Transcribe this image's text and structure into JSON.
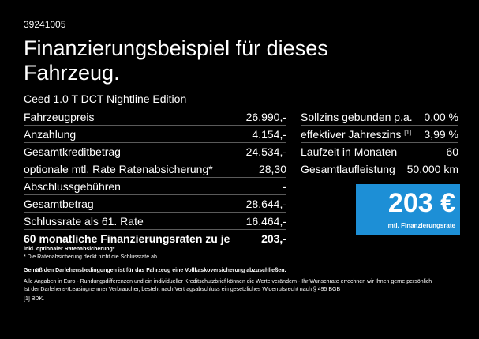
{
  "code": "39241005",
  "title_line1": "Finanzierungsbeispiel für dieses",
  "title_line2": "Fahrzeug.",
  "model": "Ceed 1.0 T DCT Nightline Edition",
  "left_rows": [
    {
      "label": "Fahrzeugpreis",
      "value": "26.990,-"
    },
    {
      "label": "Anzahlung",
      "value": "4.154,-"
    },
    {
      "label": "Gesamtkreditbetrag",
      "value": "24.534,-"
    },
    {
      "label": "optionale mtl. Rate Ratenabsicherung*",
      "value": "28,30"
    },
    {
      "label": "Abschlussgebühren",
      "value": "-"
    },
    {
      "label": "Gesamtbetrag",
      "value": "28.644,-"
    },
    {
      "label": "Schlussrate als 61. Rate",
      "value": "16.464,-"
    },
    {
      "label": "60 monatliche Finanzierungsraten zu je",
      "value": "203,-"
    }
  ],
  "right_rows": [
    {
      "label": "Sollzins gebunden p.a.",
      "sup": "",
      "value": "0,00 %"
    },
    {
      "label": "effektiver Jahreszins",
      "sup": "[1]",
      "value": "3,99 %"
    },
    {
      "label": "Laufzeit in Monaten",
      "sup": "",
      "value": "60"
    },
    {
      "label": "Gesamtlaufleistung",
      "sup": "",
      "value": "50.000 km"
    }
  ],
  "rate_box": {
    "amount": "203 €",
    "label": "mtl. Finanzierungsrate",
    "color": "#1d8fd6"
  },
  "notes": {
    "optional_title": "inkl. optionaler Ratenabsicherung*",
    "optional_text": "* Die Ratenabsicherung deckt nicht die Schlussrate ab.",
    "conditions_title": "Gemäß den Darlehensbedingungen ist für das Fahrzeug eine Vollkaskoversicherung abzuschließen.",
    "conditions_line1": "Alle Angaben in Euro - Rundungsdifferenzen und ein individueller Kreditschutzbrief können die Werte verändern - Ihr Wunschrate errechnen wir Ihnen gerne persönlich",
    "conditions_line2": "Ist der Darlehens-/Leasingnehmer Verbraucher, besteht nach Vertragsabschluss ein gesetzliches Widerrufsrecht nach § 495 BGB",
    "footnote": "[1]  BDK."
  }
}
